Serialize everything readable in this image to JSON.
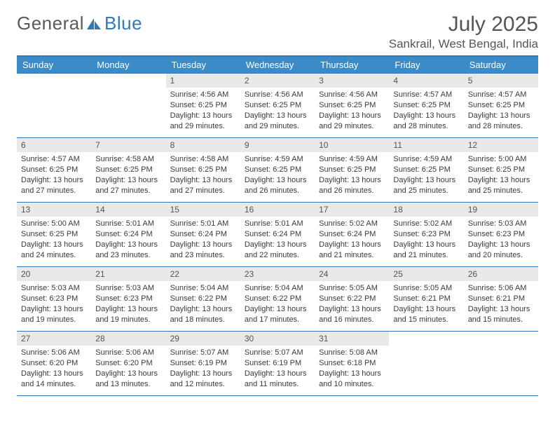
{
  "logo": {
    "textA": "General",
    "textB": "Blue"
  },
  "colors": {
    "accent": "#3b8bc9",
    "accent_dark": "#2f79b9",
    "daynum_bg": "#e9e9e9",
    "text_muted": "#555555",
    "text": "#3a3a3a",
    "white": "#ffffff"
  },
  "calendar": {
    "title": "July 2025",
    "location": "Sankrail, West Bengal, India",
    "weekdays": [
      "Sunday",
      "Monday",
      "Tuesday",
      "Wednesday",
      "Thursday",
      "Friday",
      "Saturday"
    ],
    "weeks": [
      [
        {
          "day": "",
          "sunrise": "",
          "sunset": "",
          "daylight1": "",
          "daylight2": "",
          "empty": true
        },
        {
          "day": "",
          "sunrise": "",
          "sunset": "",
          "daylight1": "",
          "daylight2": "",
          "empty": true
        },
        {
          "day": "1",
          "sunrise": "Sunrise: 4:56 AM",
          "sunset": "Sunset: 6:25 PM",
          "daylight1": "Daylight: 13 hours",
          "daylight2": "and 29 minutes."
        },
        {
          "day": "2",
          "sunrise": "Sunrise: 4:56 AM",
          "sunset": "Sunset: 6:25 PM",
          "daylight1": "Daylight: 13 hours",
          "daylight2": "and 29 minutes."
        },
        {
          "day": "3",
          "sunrise": "Sunrise: 4:56 AM",
          "sunset": "Sunset: 6:25 PM",
          "daylight1": "Daylight: 13 hours",
          "daylight2": "and 29 minutes."
        },
        {
          "day": "4",
          "sunrise": "Sunrise: 4:57 AM",
          "sunset": "Sunset: 6:25 PM",
          "daylight1": "Daylight: 13 hours",
          "daylight2": "and 28 minutes."
        },
        {
          "day": "5",
          "sunrise": "Sunrise: 4:57 AM",
          "sunset": "Sunset: 6:25 PM",
          "daylight1": "Daylight: 13 hours",
          "daylight2": "and 28 minutes."
        }
      ],
      [
        {
          "day": "6",
          "sunrise": "Sunrise: 4:57 AM",
          "sunset": "Sunset: 6:25 PM",
          "daylight1": "Daylight: 13 hours",
          "daylight2": "and 27 minutes."
        },
        {
          "day": "7",
          "sunrise": "Sunrise: 4:58 AM",
          "sunset": "Sunset: 6:25 PM",
          "daylight1": "Daylight: 13 hours",
          "daylight2": "and 27 minutes."
        },
        {
          "day": "8",
          "sunrise": "Sunrise: 4:58 AM",
          "sunset": "Sunset: 6:25 PM",
          "daylight1": "Daylight: 13 hours",
          "daylight2": "and 27 minutes."
        },
        {
          "day": "9",
          "sunrise": "Sunrise: 4:59 AM",
          "sunset": "Sunset: 6:25 PM",
          "daylight1": "Daylight: 13 hours",
          "daylight2": "and 26 minutes."
        },
        {
          "day": "10",
          "sunrise": "Sunrise: 4:59 AM",
          "sunset": "Sunset: 6:25 PM",
          "daylight1": "Daylight: 13 hours",
          "daylight2": "and 26 minutes."
        },
        {
          "day": "11",
          "sunrise": "Sunrise: 4:59 AM",
          "sunset": "Sunset: 6:25 PM",
          "daylight1": "Daylight: 13 hours",
          "daylight2": "and 25 minutes."
        },
        {
          "day": "12",
          "sunrise": "Sunrise: 5:00 AM",
          "sunset": "Sunset: 6:25 PM",
          "daylight1": "Daylight: 13 hours",
          "daylight2": "and 25 minutes."
        }
      ],
      [
        {
          "day": "13",
          "sunrise": "Sunrise: 5:00 AM",
          "sunset": "Sunset: 6:25 PM",
          "daylight1": "Daylight: 13 hours",
          "daylight2": "and 24 minutes."
        },
        {
          "day": "14",
          "sunrise": "Sunrise: 5:01 AM",
          "sunset": "Sunset: 6:24 PM",
          "daylight1": "Daylight: 13 hours",
          "daylight2": "and 23 minutes."
        },
        {
          "day": "15",
          "sunrise": "Sunrise: 5:01 AM",
          "sunset": "Sunset: 6:24 PM",
          "daylight1": "Daylight: 13 hours",
          "daylight2": "and 23 minutes."
        },
        {
          "day": "16",
          "sunrise": "Sunrise: 5:01 AM",
          "sunset": "Sunset: 6:24 PM",
          "daylight1": "Daylight: 13 hours",
          "daylight2": "and 22 minutes."
        },
        {
          "day": "17",
          "sunrise": "Sunrise: 5:02 AM",
          "sunset": "Sunset: 6:24 PM",
          "daylight1": "Daylight: 13 hours",
          "daylight2": "and 21 minutes."
        },
        {
          "day": "18",
          "sunrise": "Sunrise: 5:02 AM",
          "sunset": "Sunset: 6:23 PM",
          "daylight1": "Daylight: 13 hours",
          "daylight2": "and 21 minutes."
        },
        {
          "day": "19",
          "sunrise": "Sunrise: 5:03 AM",
          "sunset": "Sunset: 6:23 PM",
          "daylight1": "Daylight: 13 hours",
          "daylight2": "and 20 minutes."
        }
      ],
      [
        {
          "day": "20",
          "sunrise": "Sunrise: 5:03 AM",
          "sunset": "Sunset: 6:23 PM",
          "daylight1": "Daylight: 13 hours",
          "daylight2": "and 19 minutes."
        },
        {
          "day": "21",
          "sunrise": "Sunrise: 5:03 AM",
          "sunset": "Sunset: 6:23 PM",
          "daylight1": "Daylight: 13 hours",
          "daylight2": "and 19 minutes."
        },
        {
          "day": "22",
          "sunrise": "Sunrise: 5:04 AM",
          "sunset": "Sunset: 6:22 PM",
          "daylight1": "Daylight: 13 hours",
          "daylight2": "and 18 minutes."
        },
        {
          "day": "23",
          "sunrise": "Sunrise: 5:04 AM",
          "sunset": "Sunset: 6:22 PM",
          "daylight1": "Daylight: 13 hours",
          "daylight2": "and 17 minutes."
        },
        {
          "day": "24",
          "sunrise": "Sunrise: 5:05 AM",
          "sunset": "Sunset: 6:22 PM",
          "daylight1": "Daylight: 13 hours",
          "daylight2": "and 16 minutes."
        },
        {
          "day": "25",
          "sunrise": "Sunrise: 5:05 AM",
          "sunset": "Sunset: 6:21 PM",
          "daylight1": "Daylight: 13 hours",
          "daylight2": "and 15 minutes."
        },
        {
          "day": "26",
          "sunrise": "Sunrise: 5:06 AM",
          "sunset": "Sunset: 6:21 PM",
          "daylight1": "Daylight: 13 hours",
          "daylight2": "and 15 minutes."
        }
      ],
      [
        {
          "day": "27",
          "sunrise": "Sunrise: 5:06 AM",
          "sunset": "Sunset: 6:20 PM",
          "daylight1": "Daylight: 13 hours",
          "daylight2": "and 14 minutes."
        },
        {
          "day": "28",
          "sunrise": "Sunrise: 5:06 AM",
          "sunset": "Sunset: 6:20 PM",
          "daylight1": "Daylight: 13 hours",
          "daylight2": "and 13 minutes."
        },
        {
          "day": "29",
          "sunrise": "Sunrise: 5:07 AM",
          "sunset": "Sunset: 6:19 PM",
          "daylight1": "Daylight: 13 hours",
          "daylight2": "and 12 minutes."
        },
        {
          "day": "30",
          "sunrise": "Sunrise: 5:07 AM",
          "sunset": "Sunset: 6:19 PM",
          "daylight1": "Daylight: 13 hours",
          "daylight2": "and 11 minutes."
        },
        {
          "day": "31",
          "sunrise": "Sunrise: 5:08 AM",
          "sunset": "Sunset: 6:18 PM",
          "daylight1": "Daylight: 13 hours",
          "daylight2": "and 10 minutes."
        },
        {
          "day": "",
          "sunrise": "",
          "sunset": "",
          "daylight1": "",
          "daylight2": "",
          "empty": true
        },
        {
          "day": "",
          "sunrise": "",
          "sunset": "",
          "daylight1": "",
          "daylight2": "",
          "empty": true
        }
      ]
    ]
  }
}
